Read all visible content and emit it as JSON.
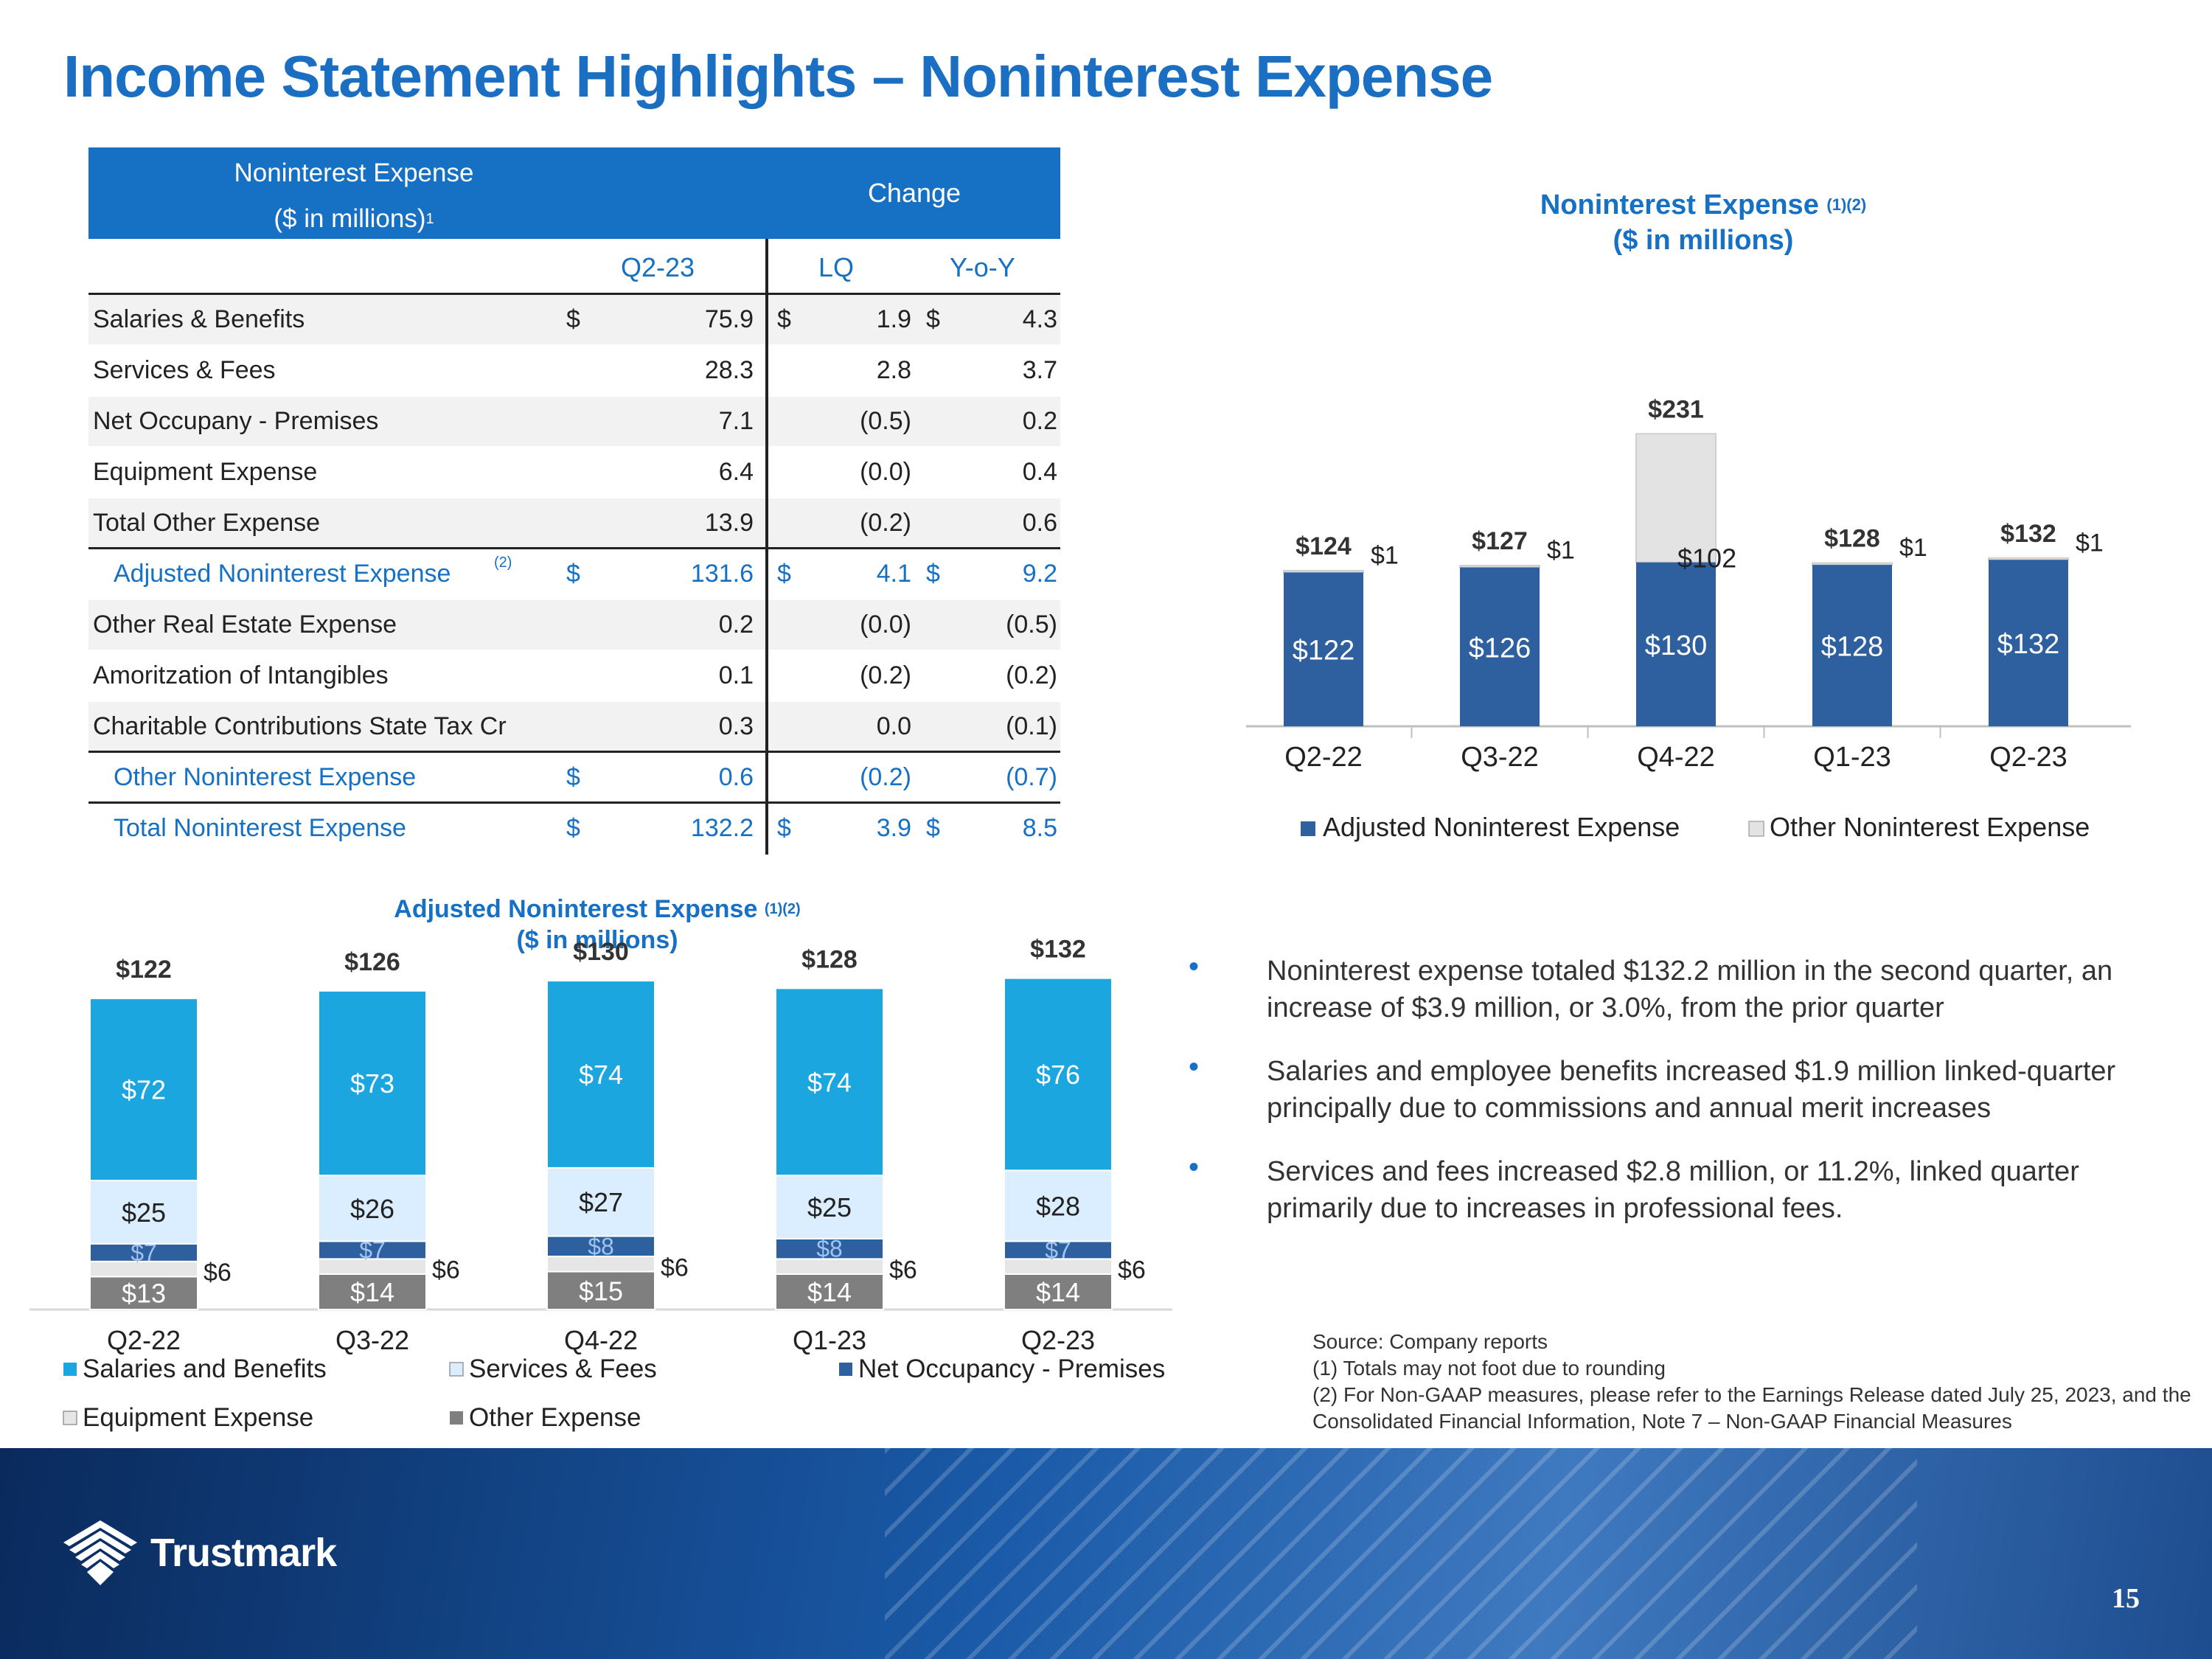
{
  "title": "Income Statement Highlights – Noninterest Expense",
  "table": {
    "header_line1": "Noninterest Expense",
    "header_line2": "($ in millions)",
    "header_sup": "1",
    "change_label": "Change",
    "col_period": "Q2-23",
    "col_lq": "LQ",
    "col_yoy": "Y-o-Y",
    "rows": [
      {
        "label": "Salaries & Benefits",
        "d1": "$",
        "v1": "75.9",
        "d2": "$",
        "v2": "1.9",
        "d3": "$",
        "v3": "4.3"
      },
      {
        "label": "Services & Fees",
        "d1": "",
        "v1": "28.3",
        "d2": "",
        "v2": "2.8",
        "d3": "",
        "v3": "3.7"
      },
      {
        "label": "Net Occupany - Premises",
        "d1": "",
        "v1": "7.1",
        "d2": "",
        "v2": "(0.5)",
        "d3": "",
        "v3": "0.2"
      },
      {
        "label": "Equipment Expense",
        "d1": "",
        "v1": "6.4",
        "d2": "",
        "v2": "(0.0)",
        "d3": "",
        "v3": "0.4"
      },
      {
        "label": "Total Other Expense",
        "d1": "",
        "v1": "13.9",
        "d2": "",
        "v2": "(0.2)",
        "d3": "",
        "v3": "0.6"
      },
      {
        "label": "Adjusted Noninterest Expense",
        "sup": "(2)",
        "d1": "$",
        "v1": "131.6",
        "d2": "$",
        "v2": "4.1",
        "d3": "$",
        "v3": "9.2"
      },
      {
        "label": "Other Real Estate Expense",
        "d1": "",
        "v1": "0.2",
        "d2": "",
        "v2": "(0.0)",
        "d3": "",
        "v3": "(0.5)"
      },
      {
        "label": "Amoritzation of Intangibles",
        "d1": "",
        "v1": "0.1",
        "d2": "",
        "v2": "(0.2)",
        "d3": "",
        "v3": "(0.2)"
      },
      {
        "label": "Charitable Contributions State Tax Cr",
        "d1": "",
        "v1": "0.3",
        "d2": "",
        "v2": "0.0",
        "d3": "",
        "v3": "(0.1)"
      },
      {
        "label": "Other Noninterest Expense",
        "d1": "$",
        "v1": "0.6",
        "d2": "",
        "v2": "(0.2)",
        "d3": "",
        "v3": "(0.7)"
      },
      {
        "label": "Total Noninterest Expense",
        "d1": "$",
        "v1": "132.2",
        "d2": "$",
        "v2": "3.9",
        "d3": "$",
        "v3": "8.5"
      }
    ]
  },
  "chart_data": [
    {
      "type": "bar",
      "stacked": true,
      "title": "Noninterest Expense",
      "title_sup": "(1)(2)",
      "subtitle": "($ in millions)",
      "categories": [
        "Q2-22",
        "Q3-22",
        "Q4-22",
        "Q1-23",
        "Q2-23"
      ],
      "series": [
        {
          "name": "Adjusted Noninterest Expense",
          "color": "#2e5f9e",
          "values": [
            122,
            126,
            130,
            128,
            132
          ],
          "labels": [
            "$122",
            "$126",
            "$130",
            "$128",
            "$132"
          ]
        },
        {
          "name": "Other Noninterest Expense",
          "color": "#e3e3e3",
          "values": [
            1,
            1,
            102,
            1,
            1
          ],
          "labels": [
            "$1",
            "$1",
            "$102",
            "$1",
            "$1"
          ]
        }
      ],
      "totals": [
        "$124",
        "$127",
        "$231",
        "$128",
        "$132"
      ]
    },
    {
      "type": "bar",
      "stacked": true,
      "title": "Adjusted Noninterest Expense",
      "title_sup": "(1)(2)",
      "subtitle": "($ in millions)",
      "categories": [
        "Q2-22",
        "Q3-22",
        "Q4-22",
        "Q1-23",
        "Q2-23"
      ],
      "series": [
        {
          "name": "Other Expense",
          "color": "#7f7f7f",
          "values": [
            13,
            14,
            15,
            14,
            14
          ],
          "labels": [
            "$13",
            "$14",
            "$15",
            "$14",
            "$14"
          ]
        },
        {
          "name": "Equipment Expense",
          "color": "#e6e6e6",
          "values": [
            6,
            6,
            6,
            6,
            6
          ],
          "labels": [
            "$6",
            "$6",
            "$6",
            "$6",
            "$6"
          ]
        },
        {
          "name": "Net Occupancy - Premises",
          "color": "#2e5f9e",
          "values": [
            7,
            7,
            8,
            8,
            7
          ],
          "labels": [
            "$7",
            "$7",
            "$8",
            "$8",
            "$7"
          ]
        },
        {
          "name": "Services & Fees",
          "color": "#dbeeff",
          "values": [
            25,
            26,
            27,
            25,
            28
          ],
          "labels": [
            "$25",
            "$26",
            "$27",
            "$25",
            "$28"
          ]
        },
        {
          "name": "Salaries and Benefits",
          "color": "#1ba6df",
          "values": [
            72,
            73,
            74,
            74,
            76
          ],
          "labels": [
            "$72",
            "$73",
            "$74",
            "$74",
            "$76"
          ]
        }
      ],
      "totals": [
        "$122",
        "$126",
        "$130",
        "$128",
        "$132"
      ],
      "legend_order": [
        "Salaries and Benefits",
        "Services & Fees",
        "Net Occupancy - Premises",
        "Equipment Expense",
        "Other Expense"
      ]
    }
  ],
  "bullets": [
    "Noninterest expense totaled $132.2 million in the second quarter, an increase of $3.9 million, or 3.0%, from the prior quarter",
    "Salaries and employee benefits increased $1.9 million linked-quarter principally due to commissions and annual merit increases",
    "Services and fees increased $2.8 million, or 11.2%, linked quarter primarily due to increases in professional fees."
  ],
  "notes": [
    "Source: Company reports",
    "(1) Totals may not foot due to rounding",
    "(2) For Non-GAAP measures, please refer to the Earnings Release dated July 25, 2023, and the Consolidated Financial Information, Note 7 – Non-GAAP Financial Measures"
  ],
  "brand": "Trustmark",
  "page_number": "15"
}
